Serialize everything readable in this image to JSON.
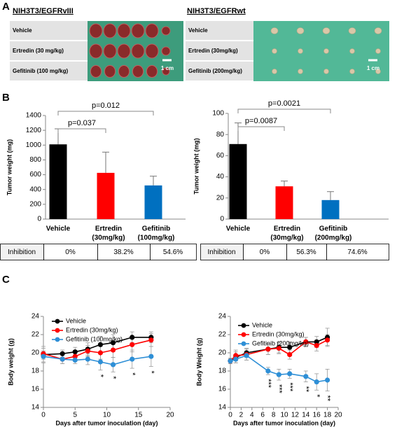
{
  "panel_labels": [
    "A",
    "B",
    "C"
  ],
  "photos": [
    {
      "title": "NIH3T3/EGFRvIII",
      "rows": [
        "Vehicle",
        "Ertredin (30 mg/kg)",
        "Gefitinib (100 mg/kg)"
      ],
      "scale": "1 cm"
    },
    {
      "title": "NIH3T3/EGFRwt",
      "rows": [
        "Vehicle",
        "Ertredin (30mg/kg)",
        "Gefitinib (200mg/kg)"
      ],
      "scale": "1 cm"
    }
  ],
  "tables": [
    {
      "rows": [
        [
          "Inhibition",
          "0%",
          "38.2%",
          "54.6%"
        ]
      ]
    },
    {
      "rows": [
        [
          "Inhibition",
          "0%",
          "56.3%",
          "74.6%"
        ]
      ]
    }
  ],
  "chart_data": [
    {
      "type": "bar",
      "y_label": "Tumor weight (mg)",
      "categories": [
        [
          "Vehicle"
        ],
        [
          "Ertredin",
          "(30mg/kg)"
        ],
        [
          "Gefitinib",
          "(100mg/kg)"
        ]
      ],
      "values": [
        1010,
        625,
        455
      ],
      "errors": [
        210,
        280,
        125
      ],
      "colors": [
        "#000000",
        "#ff0000",
        "#0070c0"
      ],
      "ylim": [
        0,
        1400
      ],
      "yticks": [
        0,
        200,
        400,
        600,
        800,
        1000,
        1200,
        1400
      ],
      "annotations": [
        {
          "text": "p=0.037",
          "between": [
            0,
            1
          ]
        },
        {
          "text": "p=0.012",
          "between": [
            0,
            2
          ]
        }
      ]
    },
    {
      "type": "bar",
      "y_label": "Tumor weight (mg)",
      "categories": [
        [
          "Vehicle"
        ],
        [
          "Ertredin",
          "(30mg/kg)"
        ],
        [
          "Gefitinib",
          "(200mg/kg)"
        ]
      ],
      "values": [
        71,
        31,
        18
      ],
      "errors": [
        20,
        5,
        8
      ],
      "colors": [
        "#000000",
        "#ff0000",
        "#0070c0"
      ],
      "ylim": [
        0,
        100
      ],
      "yticks": [
        0,
        20,
        40,
        60,
        80,
        100
      ],
      "annotations": [
        {
          "text": "p=0.0087",
          "between": [
            0,
            1
          ]
        },
        {
          "text": "p=0.0021",
          "between": [
            0,
            2
          ]
        }
      ]
    },
    {
      "type": "line",
      "y_label": "Body weight (g)",
      "x_label": "Days after tumor inoculation (day)",
      "x": [
        0,
        3,
        5,
        7,
        9,
        11,
        14,
        17
      ],
      "xlim": [
        0,
        20
      ],
      "xticks": [
        0,
        5,
        10,
        15,
        20
      ],
      "ylim": [
        14,
        24
      ],
      "yticks": [
        14,
        16,
        18,
        20,
        22,
        24
      ],
      "legend": "upper left",
      "series": [
        {
          "name": "Vehicle",
          "color": "#000000",
          "values": [
            19.8,
            19.9,
            20.1,
            20.4,
            20.9,
            21.1,
            21.7,
            21.7
          ],
          "errors": [
            0.9,
            0.4,
            0.5,
            0.7,
            0.9,
            0.9,
            0.6,
            0.6
          ]
        },
        {
          "name": "Ertredin (30mg/kg)",
          "color": "#ff0000",
          "values": [
            19.9,
            19.3,
            19.6,
            20.2,
            20.0,
            20.3,
            20.9,
            21.4
          ],
          "errors": [
            0.6,
            0.5,
            0.4,
            0.6,
            0.7,
            0.8,
            0.8,
            0.7
          ]
        },
        {
          "name": "Gefitinib (100mg/kg)",
          "color": "#2e8fd6",
          "values": [
            19.6,
            19.3,
            19.2,
            19.3,
            19.0,
            18.7,
            19.3,
            19.6
          ],
          "errors": [
            0.6,
            0.5,
            0.4,
            0.6,
            0.9,
            0.8,
            1.0,
            1.1
          ]
        }
      ],
      "annotations": [
        {
          "x": 9,
          "text": "*"
        },
        {
          "x": 11,
          "text": "*"
        },
        {
          "x": 14,
          "text": "*"
        },
        {
          "x": 17,
          "text": "*"
        }
      ]
    },
    {
      "type": "line",
      "y_label": "Body Weight (g)",
      "x_label": "Days after tumor inoculation (day)",
      "x": [
        0,
        1,
        3,
        7,
        9,
        11,
        14,
        16,
        18
      ],
      "xlim": [
        0,
        20
      ],
      "xticks": [
        0,
        2,
        4,
        6,
        8,
        10,
        12,
        14,
        16,
        18,
        20
      ],
      "ylim": [
        14,
        24
      ],
      "yticks": [
        14,
        16,
        18,
        20,
        22,
        24
      ],
      "legend": "upper left",
      "series": [
        {
          "name": "Vehicle",
          "color": "#000000",
          "values": [
            19.1,
            19.5,
            20.0,
            20.4,
            20.6,
            20.6,
            21.2,
            21.2,
            21.7
          ],
          "errors": [
            0.3,
            0.6,
            0.5,
            0.6,
            0.6,
            0.6,
            0.5,
            0.6,
            1.0
          ]
        },
        {
          "name": "Ertredin (30mg/kg)",
          "color": "#ff0000",
          "values": [
            19.1,
            19.7,
            19.8,
            20.4,
            20.5,
            19.8,
            21.2,
            20.8,
            21.4
          ],
          "errors": [
            0.3,
            0.6,
            0.6,
            0.6,
            0.6,
            0.5,
            0.5,
            0.6,
            0.6
          ]
        },
        {
          "name": "Gefitinib (200mg/kg)",
          "color": "#2e8fd6",
          "values": [
            19.1,
            19.3,
            19.7,
            18.0,
            17.6,
            17.7,
            17.4,
            16.8,
            17.0
          ],
          "errors": [
            0.3,
            0.4,
            0.5,
            0.4,
            0.6,
            0.5,
            0.6,
            0.9,
            1.2
          ]
        }
      ],
      "annotations": [
        {
          "x": 7,
          "text": "***"
        },
        {
          "x": 9,
          "text": "***"
        },
        {
          "x": 11,
          "text": "***"
        },
        {
          "x": 14,
          "text": "**"
        },
        {
          "x": 16,
          "text": "*"
        },
        {
          "x": 18,
          "text": "**"
        }
      ]
    }
  ]
}
